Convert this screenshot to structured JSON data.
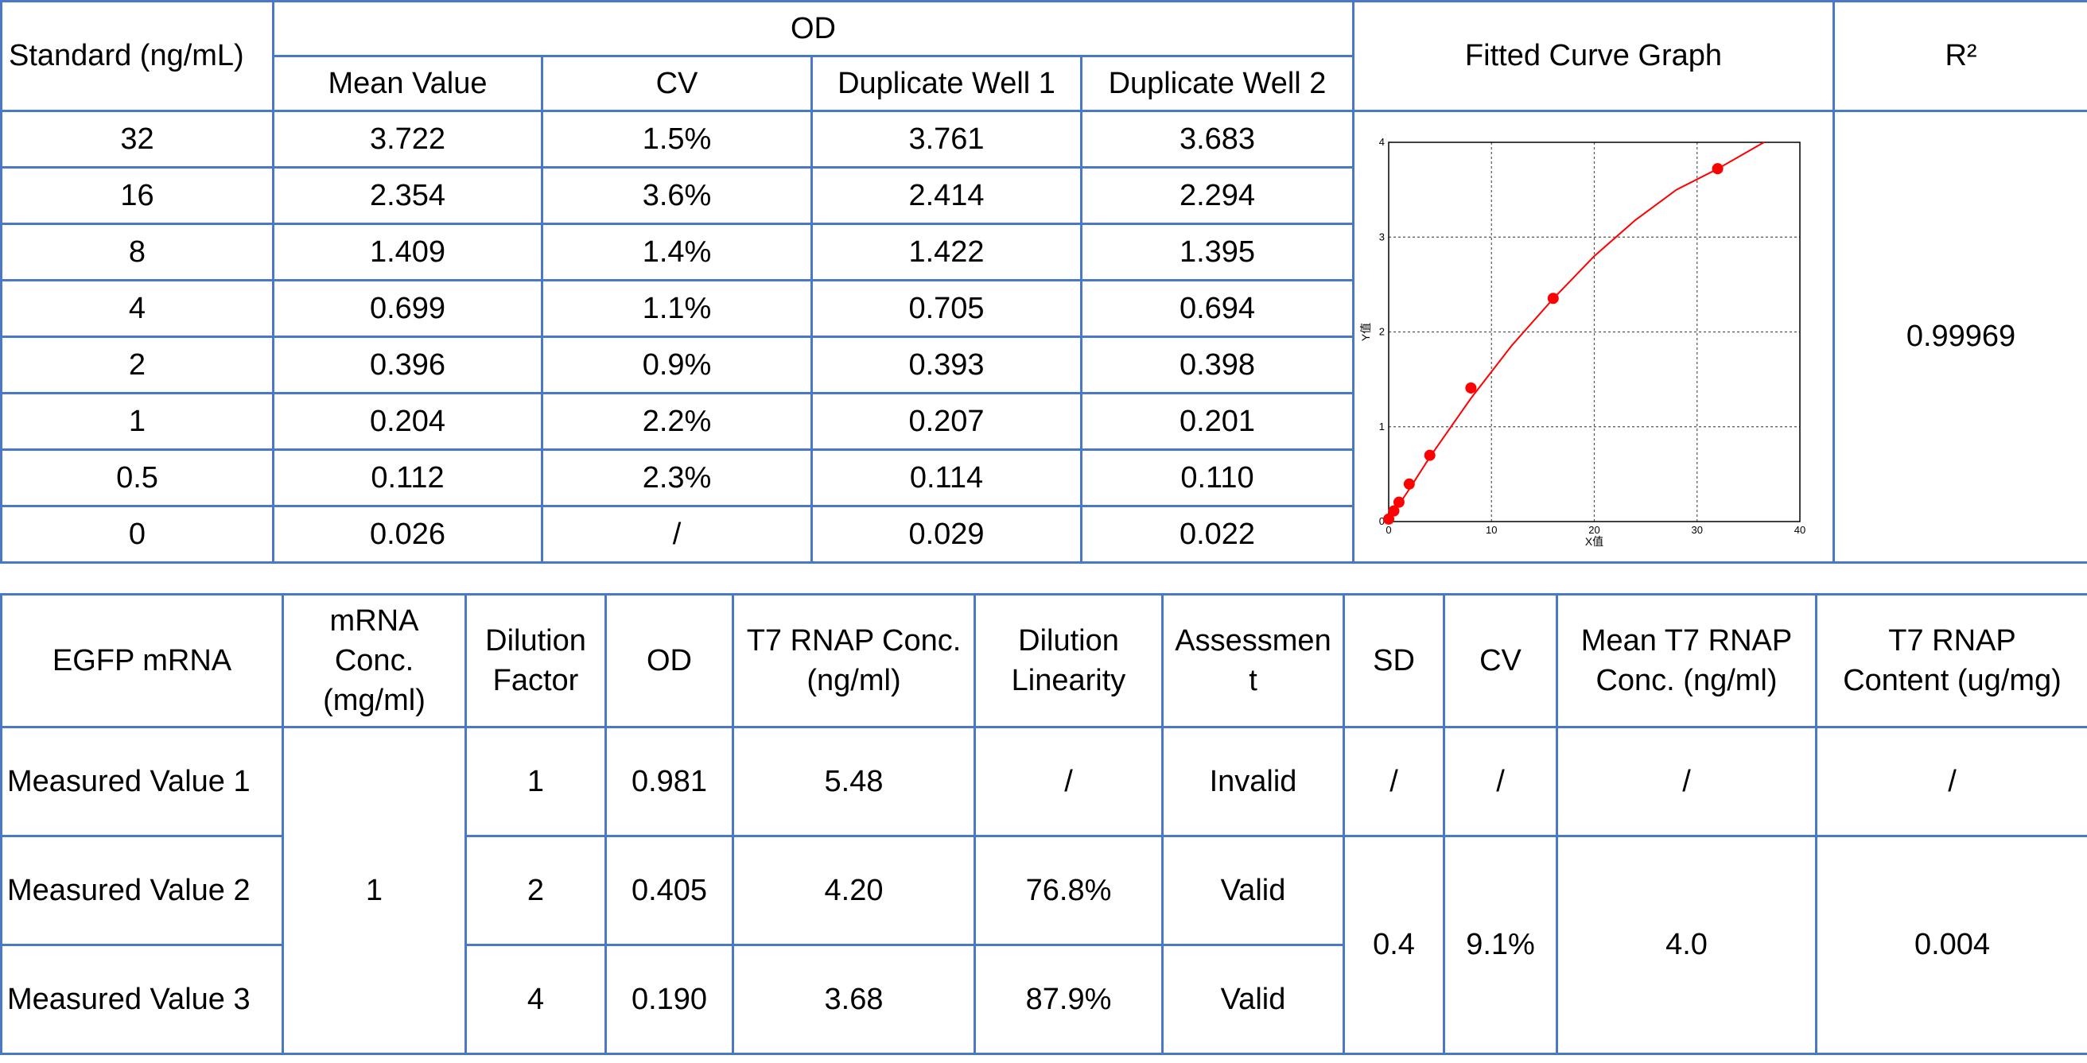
{
  "standards": {
    "header": {
      "standard": "Standard (ng/mL)",
      "od": "OD",
      "mean": "Mean Value",
      "cv": "CV",
      "dup1": "Duplicate Well 1",
      "dup2": "Duplicate Well 2",
      "graph": "Fitted Curve Graph",
      "r2": "R²"
    },
    "rows": [
      {
        "std": "32",
        "mean": "3.722",
        "cv": "1.5%",
        "dup1": "3.761",
        "dup2": "3.683"
      },
      {
        "std": "16",
        "mean": "2.354",
        "cv": "3.6%",
        "dup1": "2.414",
        "dup2": "2.294"
      },
      {
        "std": "8",
        "mean": "1.409",
        "cv": "1.4%",
        "dup1": "1.422",
        "dup2": "1.395"
      },
      {
        "std": "4",
        "mean": "0.699",
        "cv": "1.1%",
        "dup1": "0.705",
        "dup2": "0.694"
      },
      {
        "std": "2",
        "mean": "0.396",
        "cv": "0.9%",
        "dup1": "0.393",
        "dup2": "0.398"
      },
      {
        "std": "1",
        "mean": "0.204",
        "cv": "2.2%",
        "dup1": "0.207",
        "dup2": "0.201"
      },
      {
        "std": "0.5",
        "mean": "0.112",
        "cv": "2.3%",
        "dup1": "0.114",
        "dup2": "0.110"
      },
      {
        "std": "0",
        "mean": "0.026",
        "cv": "/",
        "dup1": "0.029",
        "dup2": "0.022"
      }
    ],
    "r2_value": "0.99969"
  },
  "chart_data": {
    "type": "scatter",
    "title": "",
    "xlabel": "X值",
    "ylabel": "Y值",
    "xlim": [
      0,
      40
    ],
    "ylim": [
      0,
      4
    ],
    "xticks": [
      "0",
      "10",
      "20",
      "30",
      "40"
    ],
    "yticks": [
      "0",
      "1",
      "2",
      "3",
      "4"
    ],
    "grid": true,
    "point_color": "#ff0000",
    "line_color": "#ff0000",
    "points": [
      {
        "x": 0,
        "y": 0.026
      },
      {
        "x": 0.5,
        "y": 0.112
      },
      {
        "x": 1,
        "y": 0.204
      },
      {
        "x": 2,
        "y": 0.396
      },
      {
        "x": 4,
        "y": 0.699
      },
      {
        "x": 8,
        "y": 1.409
      },
      {
        "x": 16,
        "y": 2.354
      },
      {
        "x": 32,
        "y": 3.722
      }
    ],
    "fitted_curve": [
      {
        "x": 0,
        "y": 0.02
      },
      {
        "x": 2,
        "y": 0.34
      },
      {
        "x": 4,
        "y": 0.68
      },
      {
        "x": 8,
        "y": 1.3
      },
      {
        "x": 12,
        "y": 1.86
      },
      {
        "x": 16,
        "y": 2.35
      },
      {
        "x": 20,
        "y": 2.8
      },
      {
        "x": 24,
        "y": 3.18
      },
      {
        "x": 28,
        "y": 3.5
      },
      {
        "x": 32,
        "y": 3.72
      },
      {
        "x": 36.5,
        "y": 4.0
      }
    ]
  },
  "egfp": {
    "header": {
      "sample": "EGFP mRNA",
      "conc": "mRNA\nConc.\n(mg/ml)",
      "dilution": "Dilution\nFactor",
      "od": "OD",
      "t7conc": "T7 RNAP Conc.\n(ng/ml)",
      "linearity": "Dilution\nLinearity",
      "assessment": "Assessmen\nt",
      "sd": "SD",
      "cv": "CV",
      "mean_t7": "Mean T7 RNAP\nConc. (ng/ml)",
      "content": "T7 RNAP\nContent (ug/mg)"
    },
    "rows": [
      {
        "label": "Measured Value 1",
        "dilution": "1",
        "od": "0.981",
        "t7conc": "5.48",
        "linearity": "/",
        "assessment": "Invalid",
        "sd": "/",
        "cv": "/",
        "mean_t7": "/",
        "content": "/"
      },
      {
        "label": "Measured Value 2",
        "dilution": "2",
        "od": "0.405",
        "t7conc": "4.20",
        "linearity": "76.8%",
        "assessment": "Valid"
      },
      {
        "label": "Measured Value 3",
        "dilution": "4",
        "od": "0.190",
        "t7conc": "3.68",
        "linearity": "87.9%",
        "assessment": "Valid"
      }
    ],
    "conc_value": "1",
    "group": {
      "sd": "0.4",
      "cv": "9.1%",
      "mean_t7": "4.0",
      "content": "0.004"
    }
  }
}
